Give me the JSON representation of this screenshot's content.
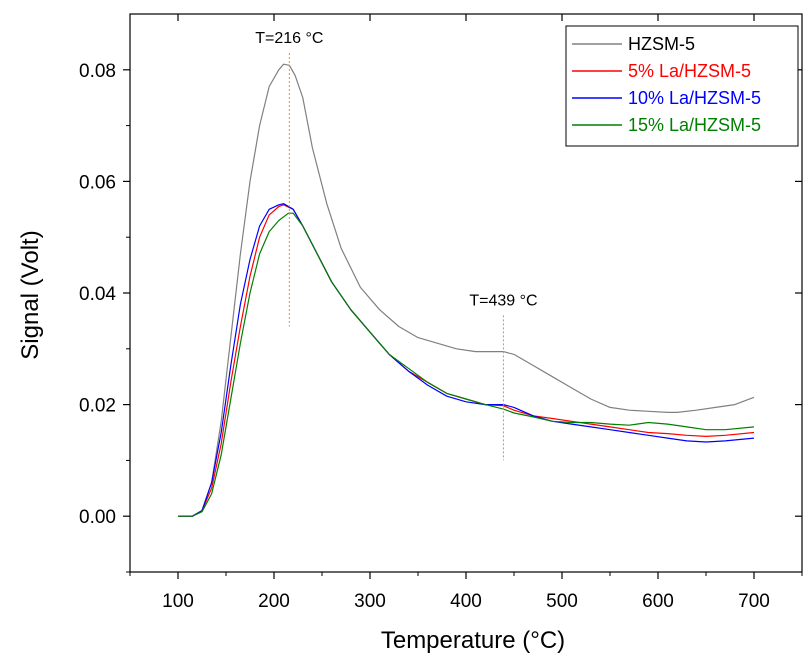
{
  "chart_data": {
    "type": "line",
    "xlabel": "Temperature (°C)",
    "ylabel": "Signal (Volt)",
    "xlim": [
      50,
      750
    ],
    "ylim": [
      -0.01,
      0.09
    ],
    "xticks": [
      100,
      200,
      300,
      400,
      500,
      600,
      700
    ],
    "yticks": [
      0.0,
      0.02,
      0.04,
      0.06,
      0.08
    ],
    "xtick_labels": [
      "100",
      "200",
      "300",
      "400",
      "500",
      "600",
      "700"
    ],
    "ytick_labels": [
      "0.00",
      "0.02",
      "0.04",
      "0.06",
      "0.08"
    ],
    "grid": false,
    "legend_position": "top-right",
    "annotations": [
      {
        "text": "T=216 °C",
        "x": 216,
        "y_from": 0.034,
        "y_to": 0.083
      },
      {
        "text": "T=439 °C",
        "x": 439,
        "y_from": 0.01,
        "y_to": 0.036
      }
    ],
    "series": [
      {
        "name": "HZSM-5",
        "color": "#808080",
        "x": [
          100,
          115,
          125,
          135,
          145,
          155,
          165,
          175,
          185,
          195,
          205,
          210,
          216,
          222,
          230,
          240,
          255,
          270,
          290,
          310,
          330,
          350,
          370,
          390,
          410,
          425,
          439,
          450,
          470,
          490,
          510,
          530,
          550,
          570,
          590,
          610,
          620,
          640,
          660,
          680,
          700
        ],
        "y": [
          0.0,
          0.0,
          0.001,
          0.006,
          0.017,
          0.032,
          0.047,
          0.06,
          0.07,
          0.077,
          0.08,
          0.081,
          0.0808,
          0.079,
          0.075,
          0.066,
          0.056,
          0.048,
          0.041,
          0.037,
          0.034,
          0.032,
          0.031,
          0.03,
          0.0295,
          0.0295,
          0.0295,
          0.029,
          0.027,
          0.025,
          0.023,
          0.021,
          0.0195,
          0.019,
          0.0188,
          0.0186,
          0.0186,
          0.019,
          0.0195,
          0.02,
          0.0213
        ]
      },
      {
        "name": "5% La/HZSM-5",
        "color": "#ff0000",
        "x": [
          100,
          115,
          125,
          135,
          145,
          155,
          165,
          175,
          185,
          195,
          205,
          210,
          220,
          230,
          245,
          260,
          280,
          300,
          320,
          340,
          360,
          380,
          400,
          420,
          439,
          450,
          470,
          490,
          510,
          530,
          550,
          570,
          590,
          610,
          630,
          650,
          670,
          700
        ],
        "y": [
          0.0,
          0.0,
          0.001,
          0.005,
          0.013,
          0.024,
          0.034,
          0.043,
          0.05,
          0.054,
          0.0555,
          0.0558,
          0.055,
          0.052,
          0.047,
          0.042,
          0.037,
          0.033,
          0.029,
          0.026,
          0.024,
          0.022,
          0.021,
          0.02,
          0.0198,
          0.019,
          0.018,
          0.0175,
          0.017,
          0.0165,
          0.016,
          0.0155,
          0.015,
          0.0148,
          0.0145,
          0.0143,
          0.0145,
          0.015
        ]
      },
      {
        "name": "10% La/HZSM-5",
        "color": "#0000ff",
        "x": [
          100,
          115,
          125,
          135,
          145,
          155,
          165,
          175,
          185,
          195,
          205,
          210,
          220,
          230,
          245,
          260,
          280,
          300,
          320,
          340,
          360,
          380,
          400,
          420,
          439,
          450,
          470,
          490,
          510,
          530,
          550,
          570,
          590,
          610,
          630,
          650,
          670,
          700
        ],
        "y": [
          0.0,
          0.0,
          0.001,
          0.006,
          0.015,
          0.027,
          0.038,
          0.046,
          0.052,
          0.055,
          0.0558,
          0.056,
          0.055,
          0.052,
          0.047,
          0.042,
          0.037,
          0.033,
          0.029,
          0.026,
          0.0235,
          0.0215,
          0.0205,
          0.02,
          0.02,
          0.0195,
          0.018,
          0.017,
          0.0165,
          0.016,
          0.0155,
          0.015,
          0.0145,
          0.014,
          0.0135,
          0.0133,
          0.0135,
          0.014
        ]
      },
      {
        "name": "15% La/HZSM-5",
        "color": "#008000",
        "x": [
          100,
          115,
          125,
          135,
          145,
          155,
          165,
          175,
          185,
          195,
          205,
          215,
          220,
          230,
          245,
          260,
          280,
          300,
          320,
          340,
          360,
          380,
          400,
          420,
          439,
          450,
          470,
          490,
          510,
          530,
          550,
          570,
          590,
          610,
          630,
          650,
          670,
          700
        ],
        "y": [
          0.0,
          0.0,
          0.0008,
          0.004,
          0.011,
          0.021,
          0.031,
          0.04,
          0.047,
          0.051,
          0.053,
          0.0543,
          0.0543,
          0.052,
          0.047,
          0.042,
          0.037,
          0.033,
          0.029,
          0.0265,
          0.024,
          0.022,
          0.021,
          0.02,
          0.0192,
          0.0185,
          0.0178,
          0.017,
          0.0168,
          0.0168,
          0.0165,
          0.0163,
          0.0168,
          0.0165,
          0.016,
          0.0155,
          0.0155,
          0.016
        ]
      }
    ]
  }
}
